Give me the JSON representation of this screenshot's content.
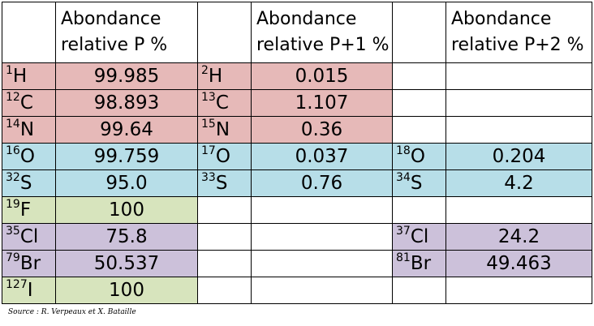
{
  "colors": {
    "group_chns": "#e6b9b8",
    "group_os": "#b7dee8",
    "group_fi": "#d7e4bd",
    "group_clbr": "#ccc1da",
    "empty": "#ffffff"
  },
  "header": {
    "col_p": {
      "line1": "Abondance",
      "line2": "relative P %"
    },
    "col_p1": {
      "line1": "Abondance",
      "line2": "relative P+1 %"
    },
    "col_p2": {
      "line1": "Abondance",
      "line2": "relative P+2 %"
    }
  },
  "rows": [
    {
      "group": "group_chns",
      "p": {
        "mass": "1",
        "symbol": "H",
        "value": "99.985"
      },
      "p1": {
        "mass": "2",
        "symbol": "H",
        "value": "0.015"
      },
      "p2": {
        "mass": "",
        "symbol": "",
        "value": ""
      }
    },
    {
      "group": "group_chns",
      "p": {
        "mass": "12",
        "symbol": "C",
        "value": "98.893"
      },
      "p1": {
        "mass": "13",
        "symbol": "C",
        "value": "1.107"
      },
      "p2": {
        "mass": "",
        "symbol": "",
        "value": ""
      }
    },
    {
      "group": "group_chns",
      "p": {
        "mass": "14",
        "symbol": "N",
        "value": "99.64"
      },
      "p1": {
        "mass": "15",
        "symbol": "N",
        "value": "0.36"
      },
      "p2": {
        "mass": "",
        "symbol": "",
        "value": ""
      }
    },
    {
      "group": "group_os",
      "p": {
        "mass": "16",
        "symbol": "O",
        "value": "99.759"
      },
      "p1": {
        "mass": "17",
        "symbol": "O",
        "value": "0.037"
      },
      "p2": {
        "mass": "18",
        "symbol": "O",
        "value": "0.204"
      }
    },
    {
      "group": "group_os",
      "p": {
        "mass": "32",
        "symbol": "S",
        "value": "95.0"
      },
      "p1": {
        "mass": "33",
        "symbol": "S",
        "value": "0.76"
      },
      "p2": {
        "mass": "34",
        "symbol": "S",
        "value": "4.2"
      }
    },
    {
      "group": "group_fi",
      "p": {
        "mass": "19",
        "symbol": "F",
        "value": "100"
      },
      "p1": {
        "mass": "",
        "symbol": "",
        "value": ""
      },
      "p2": {
        "mass": "",
        "symbol": "",
        "value": ""
      }
    },
    {
      "group": "group_clbr",
      "p": {
        "mass": "35",
        "symbol": "Cl",
        "value": "75.8"
      },
      "p1": {
        "mass": "",
        "symbol": "",
        "value": ""
      },
      "p2": {
        "mass": "37",
        "symbol": "Cl",
        "value": "24.2"
      }
    },
    {
      "group": "group_clbr",
      "p": {
        "mass": "79",
        "symbol": "Br",
        "value": "50.537"
      },
      "p1": {
        "mass": "",
        "symbol": "",
        "value": ""
      },
      "p2": {
        "mass": "81",
        "symbol": "Br",
        "value": "49.463"
      }
    },
    {
      "group": "group_fi",
      "p": {
        "mass": "127",
        "symbol": "I",
        "value": "100"
      },
      "p1": {
        "mass": "",
        "symbol": "",
        "value": ""
      },
      "p2": {
        "mass": "",
        "symbol": "",
        "value": ""
      }
    }
  ],
  "source": "Source : R. Verpeaux et X. Bataille"
}
